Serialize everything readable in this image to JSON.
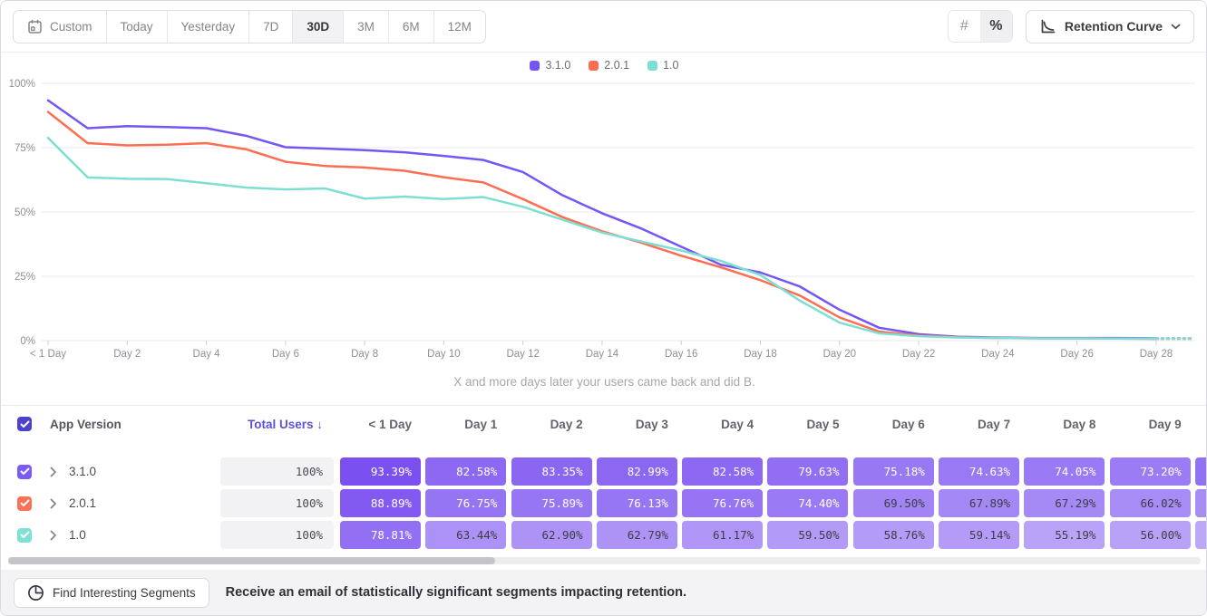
{
  "toolbar": {
    "date_buttons": [
      "Custom",
      "Today",
      "Yesterday",
      "7D",
      "30D",
      "3M",
      "6M",
      "12M"
    ],
    "selected_date_button": "30D",
    "value_modes": [
      "#",
      "%"
    ],
    "selected_value_mode": "%",
    "chart_type_label": "Retention Curve"
  },
  "chart_data": {
    "type": "line",
    "caption": "X and more days later your users came back and did B.",
    "ylim": [
      0,
      100
    ],
    "grid": true,
    "legend_position": "top-center",
    "y_tick_labels": [
      "0%",
      "25%",
      "50%",
      "75%",
      "100%"
    ],
    "x_tick_labels": [
      "< 1 Day",
      "Day 2",
      "Day 4",
      "Day 6",
      "Day 8",
      "Day 10",
      "Day 12",
      "Day 14",
      "Day 16",
      "Day 18",
      "Day 20",
      "Day 22",
      "Day 24",
      "Day 26",
      "Day 28"
    ],
    "x_unit_days": [
      0,
      1,
      2,
      3,
      4,
      5,
      6,
      7,
      8,
      9,
      10,
      11,
      12,
      13,
      14,
      15,
      16,
      17,
      18,
      19,
      20,
      21,
      22,
      23,
      24,
      25,
      26,
      27,
      28,
      29
    ],
    "dashed_tail_from_day": 28,
    "series": [
      {
        "name": "3.1.0",
        "color": "#7655F5",
        "values": [
          93.39,
          82.58,
          83.35,
          82.99,
          82.58,
          79.63,
          75.18,
          74.63,
          74.05,
          73.2,
          71.8,
          70.2,
          65.5,
          56.5,
          49.5,
          43.5,
          36.5,
          29.5,
          26.5,
          21.0,
          12.0,
          5.0,
          2.5,
          1.5,
          1.2,
          1.0,
          1.0,
          1.0,
          0.9,
          0.9
        ]
      },
      {
        "name": "2.0.1",
        "color": "#FB6E51",
        "values": [
          88.89,
          76.75,
          75.89,
          76.13,
          76.76,
          74.4,
          69.5,
          67.89,
          67.29,
          66.02,
          63.5,
          61.5,
          55.0,
          48.0,
          42.5,
          38.0,
          33.0,
          28.5,
          23.5,
          17.5,
          9.0,
          3.5,
          2.0,
          1.3,
          1.0,
          0.9,
          0.9,
          0.8,
          0.7,
          0.7
        ]
      },
      {
        "name": "1.0",
        "color": "#7DDFD3",
        "values": [
          78.81,
          63.44,
          62.9,
          62.79,
          61.17,
          59.5,
          58.76,
          59.14,
          55.19,
          56.0,
          55.0,
          55.8,
          52.0,
          47.0,
          42.0,
          38.5,
          35.0,
          31.0,
          25.5,
          15.5,
          7.0,
          2.8,
          1.7,
          1.2,
          1.0,
          0.9,
          0.9,
          0.8,
          0.8,
          0.8
        ]
      }
    ],
    "legend": [
      {
        "name": "3.1.0",
        "color": "#7655F5"
      },
      {
        "name": "2.0.1",
        "color": "#FB6E51"
      },
      {
        "name": "1.0",
        "color": "#7DDFD3"
      }
    ]
  },
  "table": {
    "header_checkbox_color": "#4B43CE",
    "headers": {
      "version": "App Version",
      "total_users": "Total Users ↓",
      "days": [
        "< 1 Day",
        "Day 1",
        "Day 2",
        "Day 3",
        "Day 4",
        "Day 5",
        "Day 6",
        "Day 7",
        "Day 8",
        "Day 9"
      ]
    },
    "cell_color_scale": {
      "light": [
        187,
        166,
        248
      ],
      "dark": [
        122,
        79,
        240
      ],
      "value_light": 54,
      "value_dark": 94,
      "white_text_threshold": 70
    },
    "rows": [
      {
        "version": "3.1.0",
        "checkbox_color": "#7B5BF7",
        "total_users": "100%",
        "values": [
          93.39,
          82.58,
          83.35,
          82.99,
          82.58,
          79.63,
          75.18,
          74.63,
          74.05,
          73.2
        ],
        "partial_cell_color": "#9172F2"
      },
      {
        "version": "2.0.1",
        "checkbox_color": "#FA7156",
        "total_users": "100%",
        "values": [
          88.89,
          76.75,
          75.89,
          76.13,
          76.76,
          74.4,
          69.5,
          67.89,
          67.29,
          66.02
        ],
        "partial_cell_color": "#A78CF4"
      },
      {
        "version": "1.0",
        "checkbox_color": "#7FE0D5",
        "total_users": "100%",
        "values": [
          78.81,
          63.44,
          62.9,
          62.79,
          61.17,
          59.5,
          58.76,
          59.14,
          55.19,
          56.0
        ],
        "partial_cell_color": "#BCA8F7"
      }
    ]
  },
  "footer": {
    "button_label": "Find Interesting Segments",
    "message": "Receive an email of statistically significant segments impacting retention."
  }
}
